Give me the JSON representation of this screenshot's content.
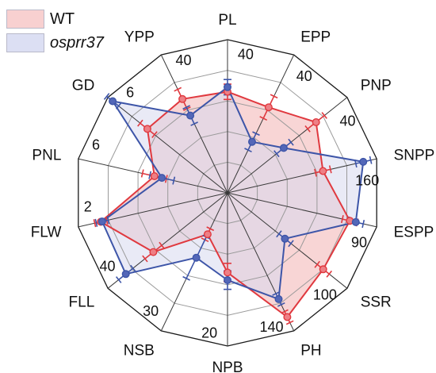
{
  "chart_data": {
    "type": "radar",
    "axes": [
      "PL",
      "EPP",
      "PNP",
      "SNPP",
      "ESPP",
      "SSR",
      "PH",
      "NPB",
      "NSB",
      "FLL",
      "FLW",
      "PNL",
      "GD",
      "YPP"
    ],
    "scale_labels": [
      "40",
      "40",
      "40",
      "160",
      "90",
      "100",
      "140",
      "20",
      "30",
      "40",
      "2",
      "6",
      "6",
      "40"
    ],
    "series": [
      {
        "name": "WT",
        "line_color": "#e0393f",
        "fill_color": "#f6caca",
        "marker_color": "#ee7f85",
        "values": [
          0.66,
          0.62,
          0.74,
          0.64,
          0.82,
          0.8,
          0.9,
          0.52,
          0.3,
          0.62,
          0.85,
          0.49,
          0.67,
          0.68
        ],
        "errors": [
          0.05,
          0.08,
          0.07,
          0.05,
          0.05,
          0.05,
          0.04,
          0.06,
          0.04,
          0.07,
          0.04,
          0.08,
          0.06,
          0.07
        ]
      },
      {
        "name": "osprr37",
        "line_color": "#3d55a8",
        "fill_color": "#d7d9ef",
        "marker_color": "#5367b8",
        "values": [
          0.69,
          0.37,
          0.47,
          0.91,
          0.86,
          0.48,
          0.77,
          0.57,
          0.47,
          0.85,
          0.84,
          0.44,
          0.96,
          0.56
        ],
        "errors": [
          0.05,
          0.06,
          0.06,
          0.05,
          0.05,
          0.05,
          0.04,
          0.06,
          0.15,
          0.06,
          0.04,
          0.08,
          0.05,
          0.06
        ]
      }
    ],
    "grid": true,
    "legend": "top-left"
  }
}
